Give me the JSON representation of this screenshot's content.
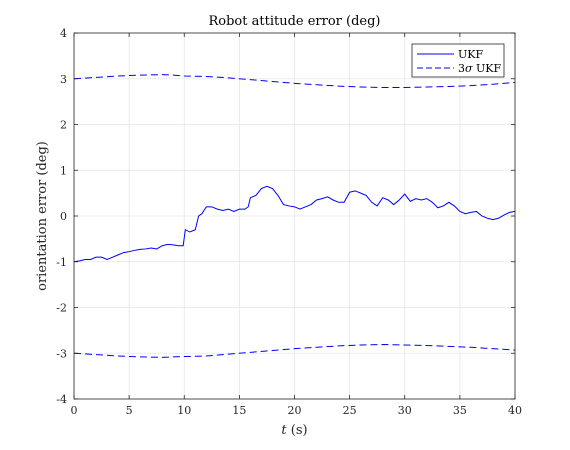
{
  "chart_data": {
    "type": "line",
    "title": "Robot attitude error (deg)",
    "xlabel_var": "t",
    "xlabel_unit": " (s)",
    "ylabel": "orientation error (deg)",
    "xlim": [
      0,
      40
    ],
    "ylim": [
      -4,
      4
    ],
    "xticks": [
      0,
      5,
      10,
      15,
      20,
      25,
      30,
      35,
      40
    ],
    "xtick_labels": [
      "0",
      "5",
      "10",
      "15",
      "20",
      "25",
      "30",
      "35",
      "40"
    ],
    "yticks": [
      -4,
      -3,
      -2,
      -1,
      0,
      1,
      2,
      3,
      4
    ],
    "ytick_labels": [
      "-4",
      "-3",
      "-2",
      "-1",
      "0",
      "1",
      "2",
      "3",
      "4"
    ],
    "grid": true,
    "legend_position": "top-right",
    "colors": {
      "series": "#0000ff",
      "grid": "#e6e6e6",
      "axis": "#262626"
    },
    "series": [
      {
        "name": "UKF",
        "style": "solid",
        "x": [
          0,
          0.5,
          1,
          1.5,
          2,
          2.5,
          3,
          3.5,
          4,
          4.5,
          5,
          5.5,
          6,
          6.5,
          7,
          7.5,
          8,
          8.5,
          9,
          9.5,
          9.9,
          10.1,
          10.5,
          11,
          11.3,
          11.6,
          12,
          12.5,
          13,
          13.5,
          14,
          14.5,
          15,
          15.5,
          15.8,
          16,
          16.5,
          17,
          17.5,
          18,
          18.5,
          19,
          19.5,
          20,
          20.5,
          21,
          21.5,
          22,
          22.5,
          23,
          23.5,
          24,
          24.5,
          25,
          25.5,
          26,
          26.5,
          27,
          27.5,
          28,
          28.5,
          29,
          29.5,
          30,
          30.5,
          31,
          31.5,
          32,
          32.5,
          33,
          33.5,
          34,
          34.5,
          35,
          35.5,
          36,
          36.5,
          37,
          37.5,
          38,
          38.5,
          39,
          39.5,
          40
        ],
        "y": [
          -1.0,
          -0.98,
          -0.95,
          -0.95,
          -0.9,
          -0.9,
          -0.95,
          -0.9,
          -0.85,
          -0.8,
          -0.78,
          -0.75,
          -0.73,
          -0.72,
          -0.7,
          -0.72,
          -0.65,
          -0.62,
          -0.63,
          -0.65,
          -0.65,
          -0.3,
          -0.35,
          -0.3,
          0.0,
          0.05,
          0.2,
          0.2,
          0.15,
          0.12,
          0.15,
          0.1,
          0.15,
          0.15,
          0.2,
          0.4,
          0.45,
          0.6,
          0.65,
          0.6,
          0.45,
          0.25,
          0.22,
          0.2,
          0.15,
          0.2,
          0.25,
          0.35,
          0.38,
          0.42,
          0.35,
          0.3,
          0.3,
          0.52,
          0.55,
          0.5,
          0.45,
          0.3,
          0.22,
          0.4,
          0.35,
          0.25,
          0.35,
          0.48,
          0.32,
          0.38,
          0.35,
          0.38,
          0.3,
          0.18,
          0.22,
          0.3,
          0.22,
          0.1,
          0.05,
          0.08,
          0.1,
          0.0,
          -0.05,
          -0.08,
          -0.05,
          0.02,
          0.08,
          0.1
        ]
      },
      {
        "name": "3σ UKF",
        "legend_prefix": "3",
        "legend_sigma": "σ",
        "legend_suffix": " UKF",
        "style": "dashed",
        "x": [
          0,
          2,
          4,
          6,
          8,
          9,
          10,
          12,
          14,
          16,
          18,
          20,
          22,
          24,
          26,
          28,
          30,
          32,
          34,
          36,
          38,
          40
        ],
        "upper": [
          3.0,
          3.03,
          3.06,
          3.08,
          3.09,
          3.08,
          3.06,
          3.05,
          3.02,
          2.98,
          2.94,
          2.9,
          2.87,
          2.84,
          2.82,
          2.81,
          2.81,
          2.82,
          2.83,
          2.85,
          2.88,
          2.92
        ],
        "lower": [
          -3.0,
          -3.03,
          -3.06,
          -3.08,
          -3.09,
          -3.08,
          -3.07,
          -3.06,
          -3.02,
          -2.98,
          -2.94,
          -2.9,
          -2.87,
          -2.84,
          -2.82,
          -2.81,
          -2.82,
          -2.83,
          -2.85,
          -2.87,
          -2.9,
          -2.93
        ]
      }
    ]
  }
}
